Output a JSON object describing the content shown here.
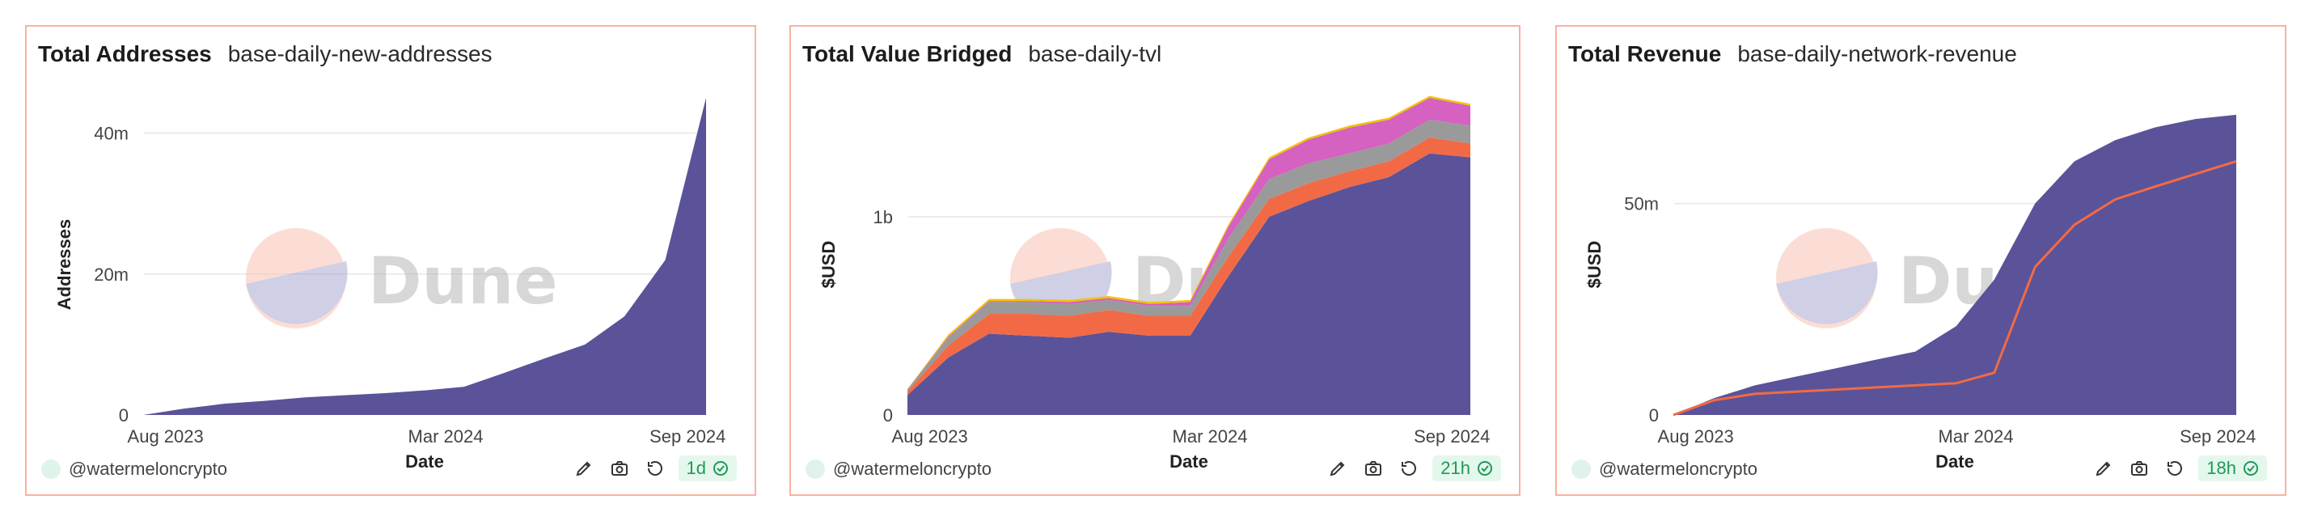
{
  "colors": {
    "primary": "#5a5399",
    "orange": "#f26a45",
    "pink": "#d561c0",
    "gray": "#9a9a9a",
    "yellow": "#f2c200",
    "border": "#f7b2a1",
    "badge_bg": "#e4f7ec",
    "badge_fg": "#1f9a56"
  },
  "panels": [
    {
      "title": "Total Addresses",
      "query": "base-daily-new-addresses",
      "author": "@watermeloncrypto",
      "badge": "1d",
      "watermark": "Dune",
      "tools": [
        "edit-icon",
        "camera-icon",
        "refresh-icon"
      ]
    },
    {
      "title": "Total Value Bridged",
      "query": "base-daily-tvl",
      "author": "@watermeloncrypto",
      "badge": "21h",
      "watermark": "Dune",
      "tools": [
        "edit-icon",
        "camera-icon",
        "refresh-icon"
      ]
    },
    {
      "title": "Total Revenue",
      "query": "base-daily-network-revenue",
      "author": "@watermeloncrypto",
      "badge": "18h",
      "watermark": "Dune",
      "tools": [
        "edit-icon",
        "camera-icon",
        "refresh-icon"
      ]
    }
  ],
  "chart_data": [
    {
      "type": "area",
      "title": "Total Addresses",
      "xlabel": "Date",
      "ylabel": "Addresses",
      "x_ticks": [
        "Aug 2023",
        "Mar 2024",
        "Sep 2024"
      ],
      "y_ticks": [
        "0",
        "20m",
        "40m"
      ],
      "y_tick_values": [
        0,
        20000000,
        40000000
      ],
      "ylim": [
        0,
        45000000
      ],
      "grid": true,
      "x": [
        "2023-07-15",
        "2023-08-15",
        "2023-09-15",
        "2023-10-15",
        "2023-11-15",
        "2023-12-15",
        "2024-01-15",
        "2024-02-15",
        "2024-03-15",
        "2024-04-15",
        "2024-05-15",
        "2024-06-15",
        "2024-07-15",
        "2024-08-15",
        "2024-09-15"
      ],
      "series": [
        {
          "values": [
            0,
            900000,
            1600000,
            2000000,
            2500000,
            2800000,
            3100000,
            3500000,
            4000000,
            6000000,
            8000000,
            10000000,
            14000000,
            22000000,
            45000000
          ]
        }
      ]
    },
    {
      "type": "area",
      "title": "Total Value Bridged",
      "xlabel": "Date",
      "ylabel": "$USD",
      "x_ticks": [
        "Aug 2023",
        "Mar 2024",
        "Sep 2024"
      ],
      "y_ticks": [
        "0",
        "1b"
      ],
      "y_tick_values": [
        0,
        1000000000
      ],
      "ylim": [
        0,
        1600000000
      ],
      "grid": true,
      "stacked": true,
      "x": [
        "2023-07-15",
        "2023-08-15",
        "2023-09-15",
        "2023-10-15",
        "2023-11-15",
        "2023-12-15",
        "2024-01-15",
        "2024-02-15",
        "2024-03-15",
        "2024-04-15",
        "2024-05-15",
        "2024-06-15",
        "2024-07-15",
        "2024-08-15",
        "2024-09-15"
      ],
      "series": [
        {
          "color": "#5a5399",
          "values": [
            100000000,
            290000000,
            410000000,
            400000000,
            390000000,
            420000000,
            400000000,
            400000000,
            700000000,
            1000000000,
            1080000000,
            1150000000,
            1200000000,
            1320000000,
            1300000000
          ]
        },
        {
          "color": "#f26a45",
          "values": [
            20000000,
            60000000,
            100000000,
            110000000,
            110000000,
            110000000,
            100000000,
            100000000,
            100000000,
            90000000,
            90000000,
            80000000,
            80000000,
            80000000,
            70000000
          ]
        },
        {
          "color": "#9a9a9a",
          "values": [
            10000000,
            40000000,
            60000000,
            60000000,
            60000000,
            50000000,
            50000000,
            50000000,
            90000000,
            100000000,
            100000000,
            90000000,
            90000000,
            90000000,
            90000000
          ]
        },
        {
          "color": "#d561c0",
          "values": [
            0,
            5000000,
            5000000,
            5000000,
            10000000,
            10000000,
            10000000,
            20000000,
            60000000,
            100000000,
            120000000,
            130000000,
            120000000,
            110000000,
            100000000
          ]
        },
        {
          "color": "#f2c200",
          "values": [
            0,
            10000000,
            10000000,
            10000000,
            10000000,
            10000000,
            10000000,
            10000000,
            10000000,
            10000000,
            10000000,
            10000000,
            10000000,
            10000000,
            10000000
          ]
        }
      ]
    },
    {
      "type": "area",
      "title": "Total Revenue",
      "xlabel": "Date",
      "ylabel": "$USD",
      "x_ticks": [
        "Aug 2023",
        "Mar 2024",
        "Sep 2024"
      ],
      "y_ticks": [
        "0",
        "50m"
      ],
      "y_tick_values": [
        0,
        50000000
      ],
      "ylim": [
        0,
        75000000
      ],
      "grid": true,
      "x": [
        "2023-07-15",
        "2023-08-15",
        "2023-09-15",
        "2023-10-15",
        "2023-11-15",
        "2023-12-15",
        "2024-01-15",
        "2024-02-15",
        "2024-03-15",
        "2024-04-15",
        "2024-05-15",
        "2024-06-15",
        "2024-07-15",
        "2024-08-15",
        "2024-09-15"
      ],
      "series": [
        {
          "color": "#5a5399",
          "type": "area",
          "values": [
            0,
            4000000,
            7000000,
            9000000,
            11000000,
            13000000,
            15000000,
            21000000,
            32000000,
            50000000,
            60000000,
            65000000,
            68000000,
            70000000,
            71000000
          ]
        },
        {
          "color": "#f26a45",
          "type": "line",
          "values": [
            0,
            3500000,
            5000000,
            5500000,
            6000000,
            6500000,
            7000000,
            7500000,
            10000000,
            35000000,
            45000000,
            51000000,
            54000000,
            57000000,
            60000000
          ]
        }
      ]
    }
  ]
}
